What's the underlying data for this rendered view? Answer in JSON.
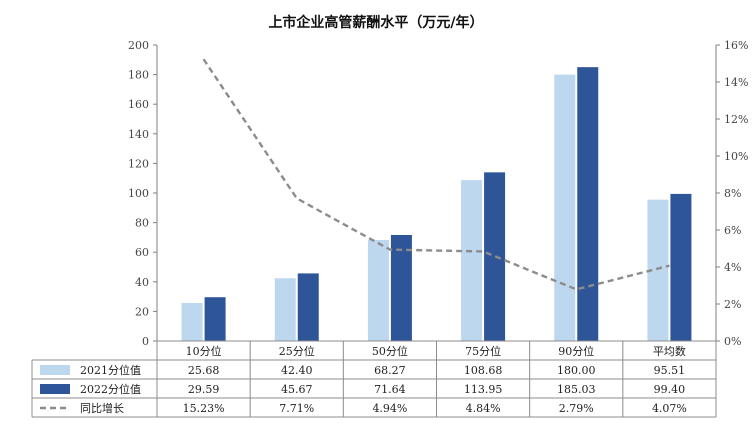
{
  "chart_data": {
    "type": "bar",
    "title": "上市企业高管薪酬水平（万元/年）",
    "categories": [
      "10分位",
      "25分位",
      "50分位",
      "75分位",
      "90分位",
      "平均数"
    ],
    "series": [
      {
        "name": "2021分位值",
        "kind": "bar",
        "axis": "left",
        "color": "#bdd7ee",
        "values": [
          25.68,
          42.4,
          68.27,
          108.68,
          180.0,
          95.51
        ],
        "labels": [
          "25.68",
          "42.40",
          "68.27",
          "108.68",
          "180.00",
          "95.51"
        ]
      },
      {
        "name": "2022分位值",
        "kind": "bar",
        "axis": "left",
        "color": "#2e5597",
        "values": [
          29.59,
          45.67,
          71.64,
          113.95,
          185.03,
          99.4
        ],
        "labels": [
          "29.59",
          "45.67",
          "71.64",
          "113.95",
          "185.03",
          "99.40"
        ]
      },
      {
        "name": "同比增长",
        "kind": "line",
        "axis": "right",
        "color": "#8c8c8c",
        "style": "dashed",
        "values": [
          15.23,
          7.71,
          4.94,
          4.84,
          2.79,
          4.07
        ],
        "labels": [
          "15.23%",
          "7.71%",
          "4.94%",
          "4.84%",
          "2.79%",
          "4.07%"
        ]
      }
    ],
    "ylim": [
      0,
      200
    ],
    "yticks": [
      "0",
      "20",
      "40",
      "60",
      "80",
      "100",
      "120",
      "140",
      "160",
      "180",
      "200"
    ],
    "y2lim": [
      0,
      16
    ],
    "y2ticks": [
      "0%",
      "2%",
      "4%",
      "6%",
      "8%",
      "10%",
      "12%",
      "14%",
      "16%"
    ],
    "grid": false,
    "legend": "data-table"
  }
}
